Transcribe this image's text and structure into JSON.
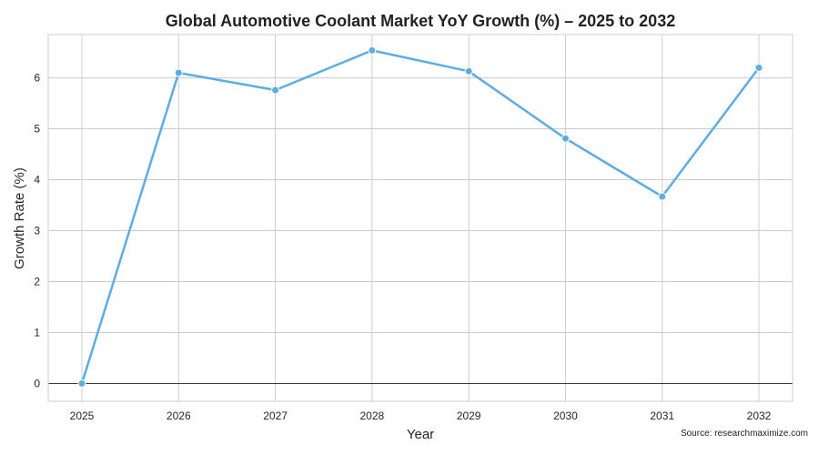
{
  "chart_data": {
    "type": "line",
    "title": "Global Automotive Coolant Market YoY Growth (%) – 2025 to 2032",
    "xlabel": "Year",
    "ylabel": "Growth Rate (%)",
    "x": [
      "2025",
      "2026",
      "2027",
      "2028",
      "2029",
      "2030",
      "2031",
      "2032"
    ],
    "series": [
      {
        "values": [
          0,
          6.1,
          5.76,
          6.54,
          6.13,
          4.81,
          3.67,
          6.2
        ],
        "color": "#5DADE2"
      }
    ],
    "y_ticks": [
      "0",
      "1",
      "2",
      "3",
      "4",
      "5",
      "6"
    ],
    "ylim": [
      -0.35,
      6.85
    ],
    "grid": true,
    "zero_line": true,
    "marker": "circle",
    "source": "Source: researchmaximize.com"
  }
}
